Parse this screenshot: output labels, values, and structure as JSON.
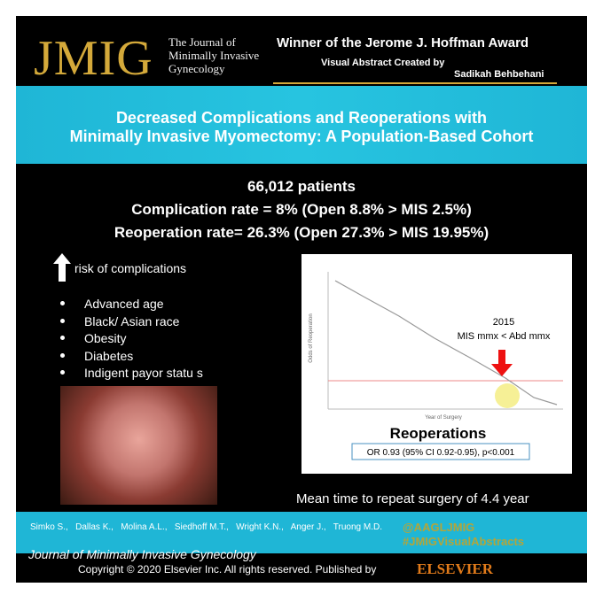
{
  "header": {
    "logo": "JMIG",
    "journal": [
      "The Journal of",
      "Minimally Invasive",
      "Gynecology"
    ],
    "award": "Winner of the Jerome J. Hoffman Award",
    "created_by": "Visual Abstract Created by",
    "author": "Sadikah Behbehani"
  },
  "title": [
    "Decreased Complications and Reoperations with",
    "Minimally Invasive Myomectomy: A Population-Based Cohort"
  ],
  "stats": [
    "66,012 patients",
    "Complication rate = 8% (Open 8.8% > MIS 2.5%)",
    "Reoperation rate= 26.3% (Open 27.3% > MIS 19.95%)"
  ],
  "risk": {
    "heading": "risk of complications",
    "items": [
      "Advanced age",
      "Black/ Asian race",
      "Obesity",
      "Diabetes",
      "Indigent payor statu s"
    ]
  },
  "figure": {
    "y_label": "Odds of Reoperation",
    "x_label": "Year of Surgery",
    "year": "2015",
    "note": "MIS mmx < Abd mmx",
    "heading": "Reoperations",
    "result": "OR 0.93 (95% CI 0.92-0.95), p<0.001"
  },
  "mean_time": "Mean time to repeat surgery of 4.4 year",
  "authors": "Simko S.,   Dallas K.,   Molina A.L.,   Siedhoff M.T.,   Wright K.N.,   Anger J.,   Truong M.D.",
  "handles": [
    "@AAGLJMIG",
    "#JMIGVisualAbstracts"
  ],
  "footer": {
    "journal": "Journal of Minimally Invasive Gynecology",
    "copyright": "Copyright © 2020 Elsevier Inc. All rights reserved. Published by",
    "publisher": "ELSEVIER"
  }
}
